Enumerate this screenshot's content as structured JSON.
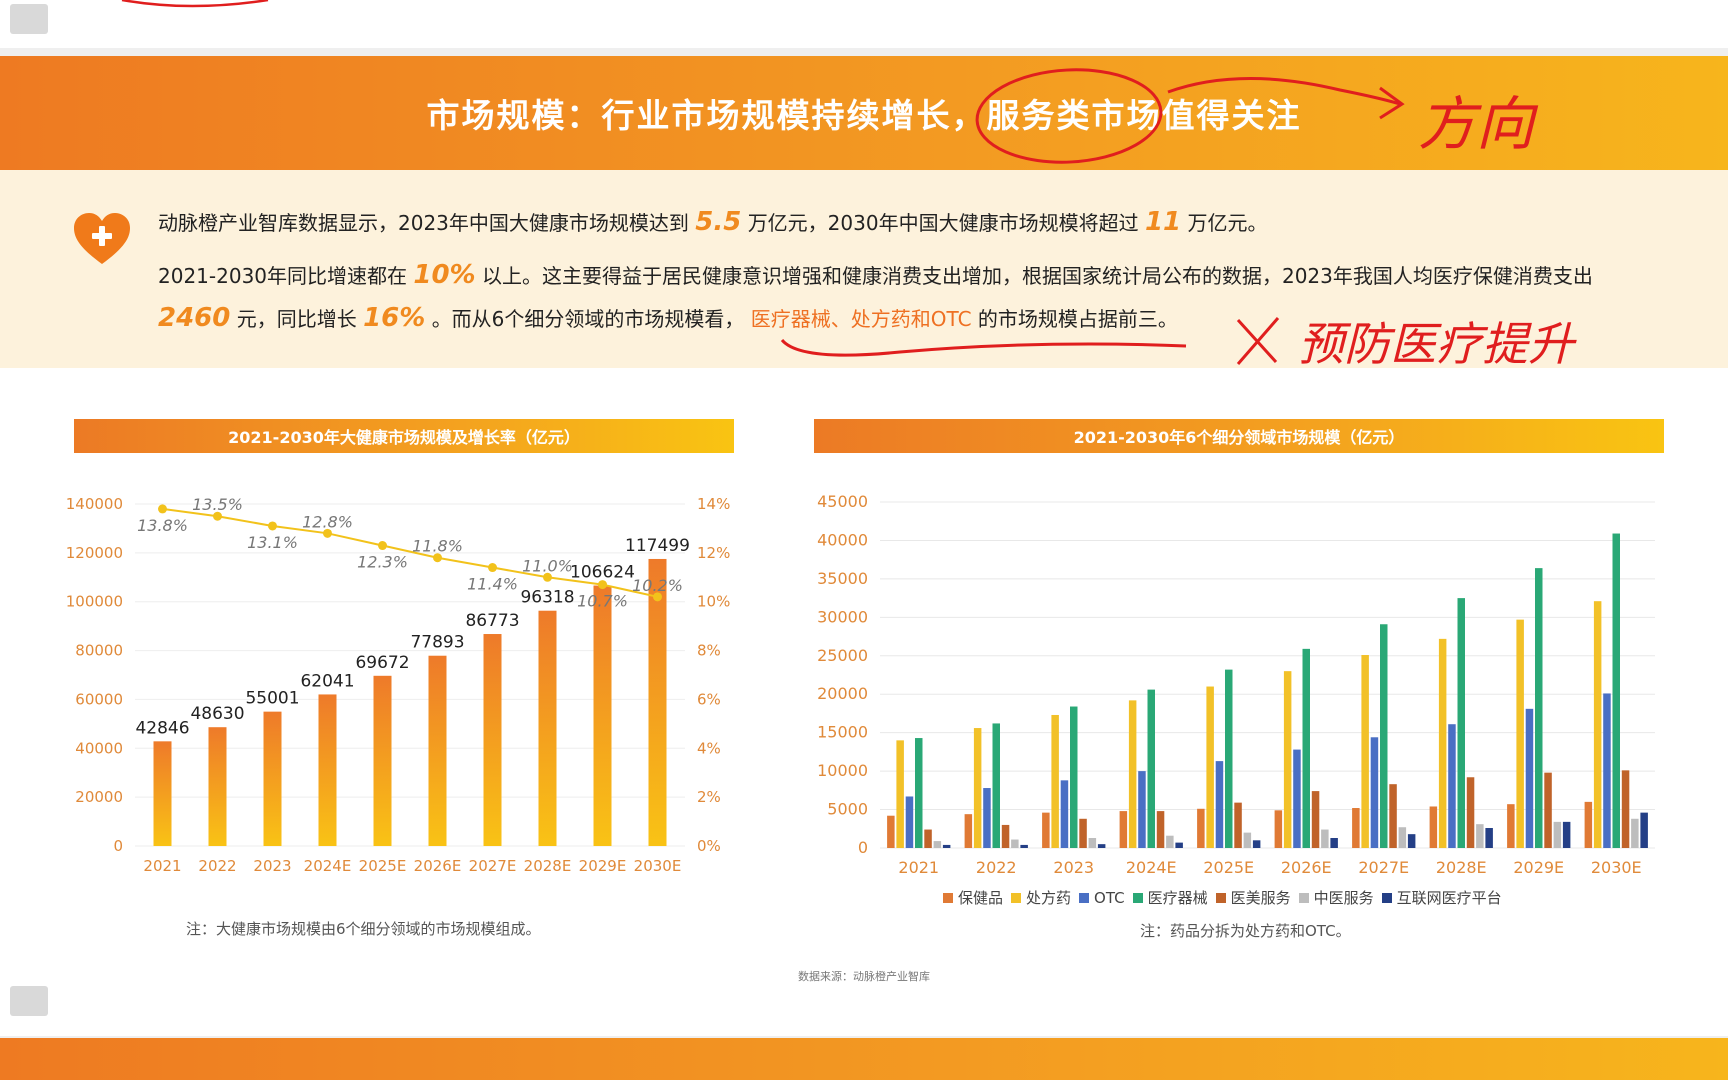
{
  "header": {
    "title": "市场规模：行业市场规模持续增长，服务类市场值得关注"
  },
  "intro": {
    "p1_a": "动脉橙产业智库数据显示，2023年中国大健康市场规模达到",
    "p1_v1": "5.5",
    "p1_b": "万亿元，2030年中国大健康市场规模将超过",
    "p1_v2": "11",
    "p1_c": "万亿元。",
    "p2_a": "2021-2030年同比增速都在",
    "p2_v1": "10%",
    "p2_b": "以上。这主要得益于居民健康意识增强和健康消费支出增加，根据国家统计局公布的数据，2023年我国人均医疗保健消费支出",
    "p2_v2": "2460",
    "p2_c": "元，同比增长",
    "p2_v3": "16%",
    "p2_d": "。而从6个细分领域的市场规模看，",
    "p2_hl": "医疗器械、处方药和OTC",
    "p2_e": "的市场规模占据前三。"
  },
  "handwriting": {
    "arrow_note": "方向",
    "side_note": "预防医疗提升"
  },
  "colors": {
    "brand_orange": "#ef7d22",
    "bar_top": "#ee7a2a",
    "bar_bottom": "#f9c315",
    "line": "#f2c21b",
    "ink": "#e01e1e",
    "series": [
      "#e07a35",
      "#f2c128",
      "#4a6fc4",
      "#2aa876",
      "#c0632a",
      "#bdbdbd",
      "#243f86"
    ]
  },
  "footnotes": {
    "left": "注：大健康市场规模由6个细分领域的市场规模组成。",
    "right": "注：药品分拆为处方药和OTC。",
    "source": "数据来源：动脉橙产业智库"
  },
  "chart_data": [
    {
      "type": "bar",
      "title": "2021-2030年大健康市场规模及增长率（亿元）",
      "categories": [
        "2021",
        "2022",
        "2023",
        "2024E",
        "2025E",
        "2026E",
        "2027E",
        "2028E",
        "2029E",
        "2030E"
      ],
      "values": [
        42846,
        48630,
        55001,
        62041,
        69672,
        77893,
        86773,
        96318,
        106624,
        117499
      ],
      "value_labels": [
        "42846",
        "48630",
        "55001",
        "62041",
        "69672",
        "77893",
        "86773",
        "96318",
        "106624",
        "117499"
      ],
      "ylim": [
        0,
        140000
      ],
      "y_ticks": [
        "0",
        "20000",
        "40000",
        "60000",
        "80000",
        "100000",
        "120000",
        "140000"
      ],
      "secondary": {
        "type": "line",
        "values": [
          13.8,
          13.5,
          13.1,
          12.8,
          12.3,
          11.8,
          11.4,
          11.0,
          10.7,
          10.2
        ],
        "labels": [
          "13.8%",
          "13.5%",
          "13.1%",
          "12.8%",
          "12.3%",
          "11.8%",
          "11.4%",
          "11.0%",
          "10.7%",
          "10.2%"
        ],
        "ylim": [
          0,
          14
        ],
        "y_ticks": [
          "0%",
          "2%",
          "4%",
          "6%",
          "8%",
          "10%",
          "12%",
          "14%"
        ]
      },
      "grid": true
    },
    {
      "type": "bar",
      "title": "2021-2030年6个细分领域市场规模（亿元）",
      "categories": [
        "2021",
        "2022",
        "2023",
        "2024E",
        "2025E",
        "2026E",
        "2027E",
        "2028E",
        "2029E",
        "2030E"
      ],
      "series": [
        {
          "name": "保健品",
          "values": [
            4200,
            4400,
            4600,
            4800,
            5100,
            4900,
            5200,
            5400,
            5700,
            6000
          ]
        },
        {
          "name": "处方药",
          "values": [
            14000,
            15600,
            17300,
            19200,
            21000,
            23000,
            25100,
            27200,
            29700,
            32100
          ]
        },
        {
          "name": "OTC",
          "values": [
            6700,
            7800,
            8800,
            10000,
            11300,
            12800,
            14400,
            16100,
            18100,
            20100
          ]
        },
        {
          "name": "医疗器械",
          "values": [
            14300,
            16200,
            18400,
            20600,
            23200,
            25900,
            29100,
            32500,
            36400,
            40900
          ]
        },
        {
          "name": "医美服务",
          "values": [
            2400,
            3000,
            3800,
            4800,
            5900,
            7400,
            8300,
            9200,
            9800,
            10100
          ]
        },
        {
          "name": "中医服务",
          "values": [
            900,
            1100,
            1300,
            1600,
            2000,
            2400,
            2700,
            3100,
            3400,
            3800
          ]
        },
        {
          "name": "互联网医疗平台",
          "values": [
            400,
            400,
            500,
            700,
            1000,
            1300,
            1800,
            2600,
            3400,
            4600
          ]
        }
      ],
      "ylim": [
        0,
        45000
      ],
      "y_ticks": [
        "0",
        "5000",
        "10000",
        "15000",
        "20000",
        "25000",
        "30000",
        "35000",
        "40000",
        "45000"
      ],
      "legend": "bottom",
      "grid": true
    }
  ]
}
